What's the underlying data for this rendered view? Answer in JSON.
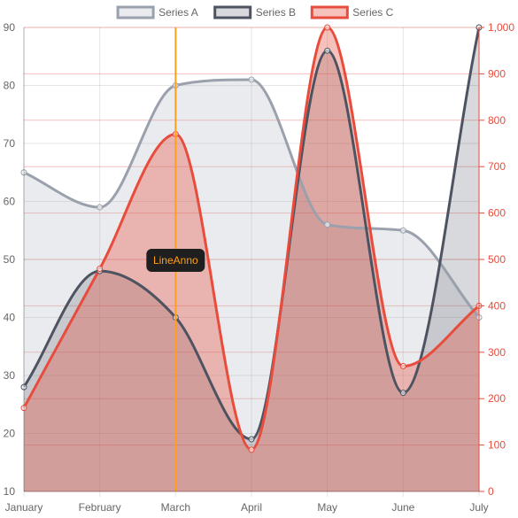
{
  "chart_data": {
    "type": "line",
    "categories": [
      "January",
      "February",
      "March",
      "April",
      "May",
      "June",
      "July"
    ],
    "series": [
      {
        "name": "Series A",
        "axis": "left",
        "values": [
          65,
          59,
          80,
          81,
          56,
          55,
          40
        ],
        "color": "#9aa0ac",
        "fill": "rgba(170,174,190,0.25)"
      },
      {
        "name": "Series B",
        "axis": "left",
        "values": [
          28,
          48,
          40,
          19,
          86,
          27,
          90
        ],
        "color": "#4d5360",
        "fill": "rgba(77,83,96,0.22)"
      },
      {
        "name": "Series C",
        "axis": "right",
        "values": [
          180,
          480,
          770,
          90,
          1000,
          270,
          400
        ],
        "color": "#e74c3c",
        "fill": "rgba(231,76,60,0.35)"
      }
    ],
    "y_left": {
      "min": 10,
      "max": 90,
      "ticks": [
        "10",
        "20",
        "30",
        "40",
        "50",
        "60",
        "70",
        "80",
        "90"
      ],
      "tick_color": "#666666"
    },
    "y_right": {
      "min": 0,
      "max": 1000,
      "ticks": [
        "0",
        "100",
        "200",
        "300",
        "400",
        "500",
        "600",
        "700",
        "800",
        "900",
        "1,000"
      ],
      "tick_color": "#e74c3c"
    },
    "annotation": {
      "type": "vertical-line",
      "x": "March",
      "label": "LineAnno",
      "line_color": "#ff9f1a",
      "label_color": "#ff9f1a",
      "label_bg": "#1f1f1f"
    },
    "legend": {
      "position": "top-center"
    },
    "grid": true
  }
}
